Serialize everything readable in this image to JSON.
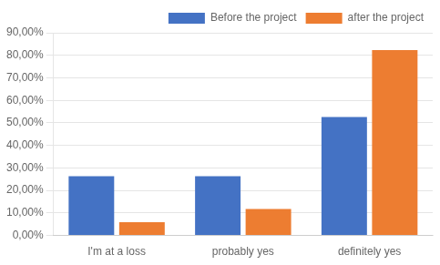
{
  "chart_data": {
    "type": "bar",
    "categories": [
      "I'm at a loss",
      "probably yes",
      "definitely yes"
    ],
    "series": [
      {
        "name": "Before the project",
        "color": "#4472C4",
        "values": [
          0.2632,
          0.2632,
          0.5263
        ]
      },
      {
        "name": "after the project",
        "color": "#ED7D31",
        "values": [
          0.0588,
          0.1176,
          0.8235
        ]
      }
    ],
    "ylim": [
      0,
      0.9
    ],
    "yticks": [
      {
        "value": 0.0,
        "label": "0,00%"
      },
      {
        "value": 0.1,
        "label": "10,00%"
      },
      {
        "value": 0.2,
        "label": "20,00%"
      },
      {
        "value": 0.3,
        "label": "30,00%"
      },
      {
        "value": 0.4,
        "label": "40,00%"
      },
      {
        "value": 0.5,
        "label": "50,00%"
      },
      {
        "value": 0.6,
        "label": "60,00%"
      },
      {
        "value": 0.7,
        "label": "70,00%"
      },
      {
        "value": 0.8,
        "label": "80,00%"
      },
      {
        "value": 0.9,
        "label": "90,00%"
      }
    ],
    "grid": true,
    "legend": "upper right"
  }
}
